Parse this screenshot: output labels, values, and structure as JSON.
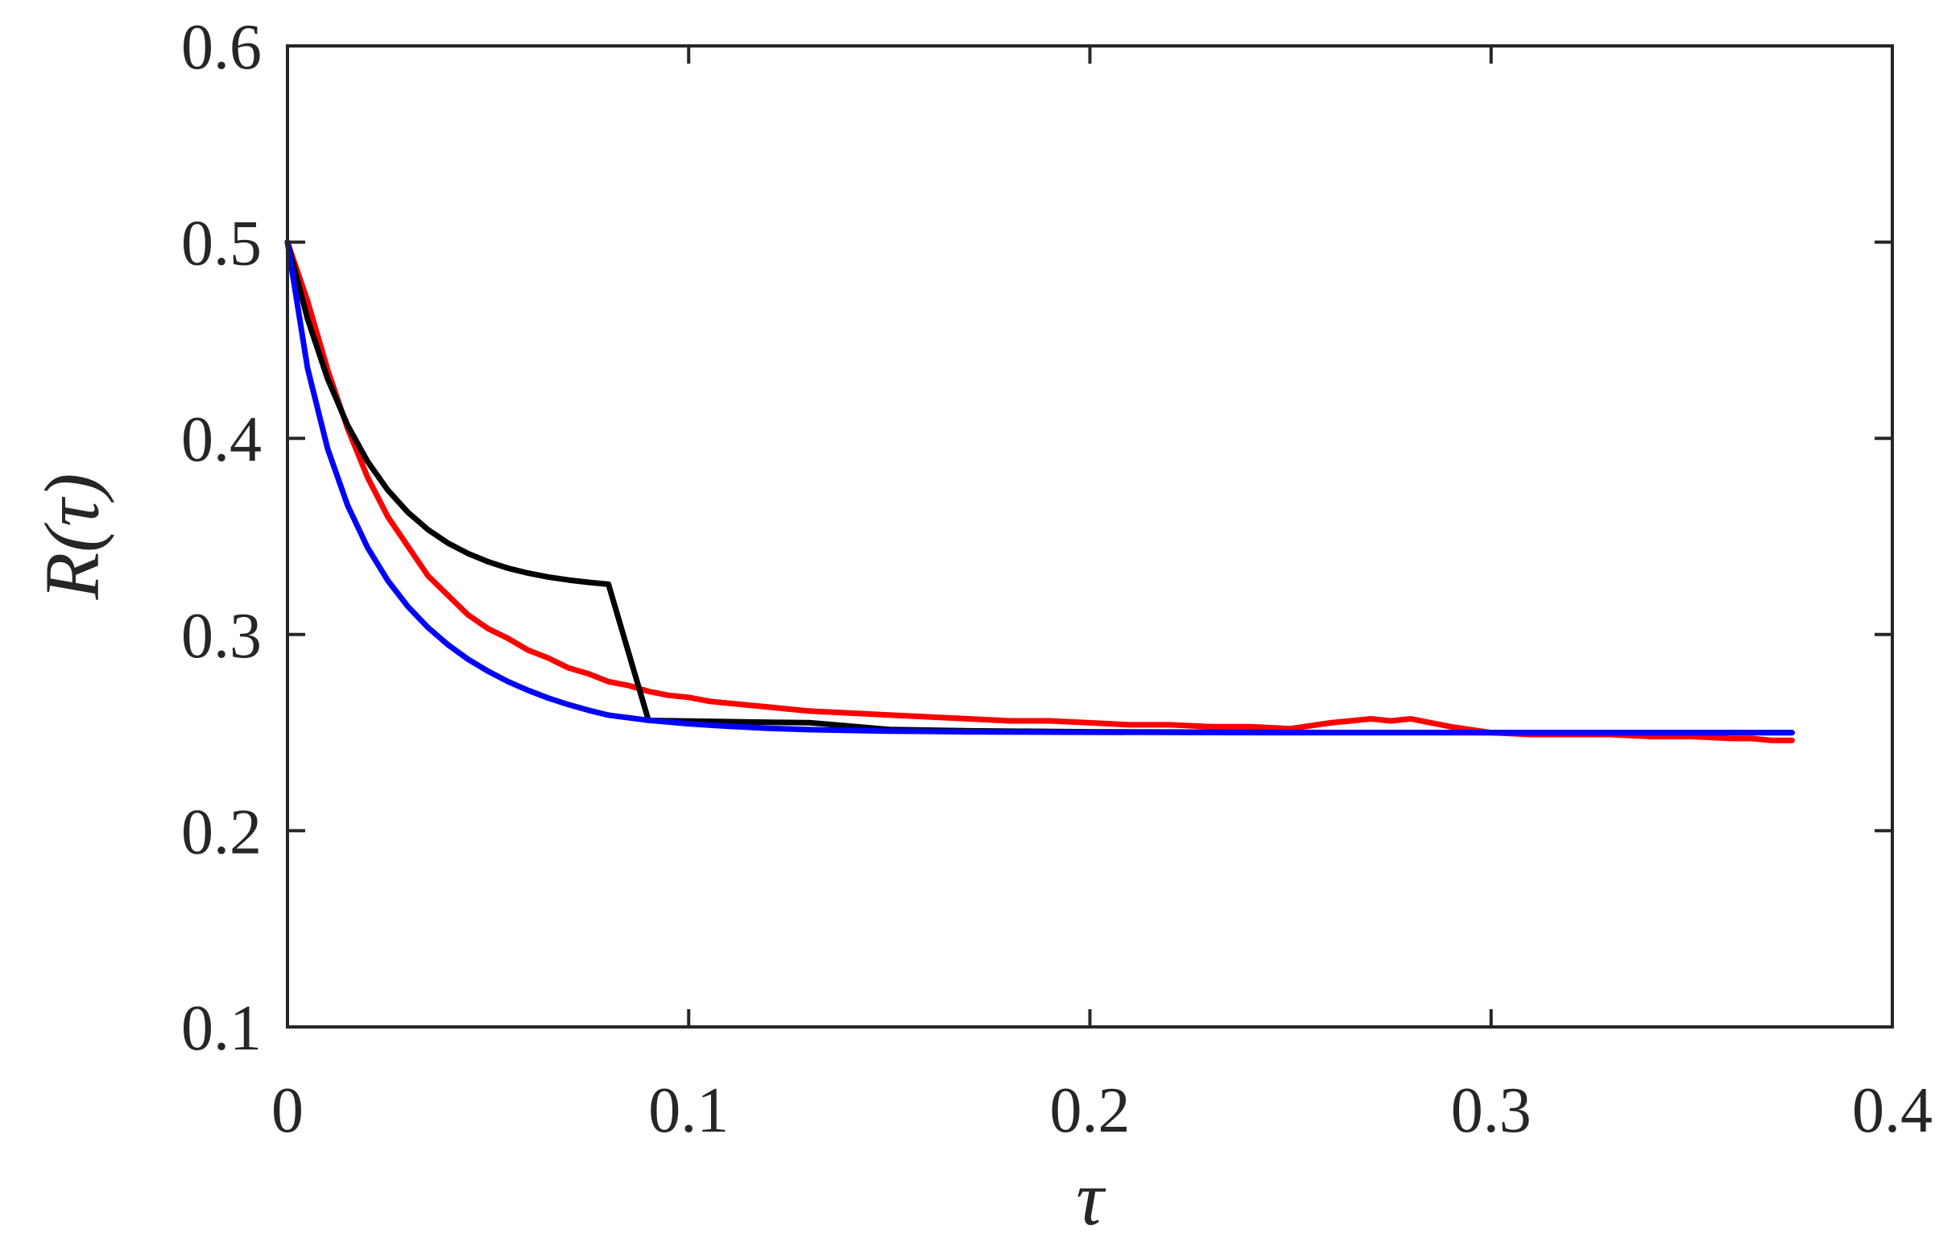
{
  "chart_data": {
    "type": "line",
    "title": "",
    "xlabel": "τ",
    "ylabel": "R(τ)",
    "xlim": [
      0,
      0.4
    ],
    "ylim": [
      0.1,
      0.6
    ],
    "xticks": [
      0,
      0.1,
      0.2,
      0.3,
      0.4
    ],
    "xtick_labels": [
      "0",
      "0.1",
      "0.2",
      "0.3",
      "0.4"
    ],
    "yticks": [
      0.1,
      0.2,
      0.3,
      0.4,
      0.5,
      0.6
    ],
    "ytick_labels": [
      "0.1",
      "0.2",
      "0.3",
      "0.4",
      "0.5",
      "0.6"
    ],
    "grid": false,
    "legend": "none",
    "series": [
      {
        "color": "#ff0000",
        "x": [
          0,
          0.005,
          0.01,
          0.015,
          0.02,
          0.025,
          0.03,
          0.035,
          0.04,
          0.045,
          0.05,
          0.055,
          0.06,
          0.065,
          0.07,
          0.075,
          0.08,
          0.085,
          0.09,
          0.095,
          0.1,
          0.105,
          0.11,
          0.115,
          0.12,
          0.125,
          0.13,
          0.14,
          0.15,
          0.16,
          0.17,
          0.18,
          0.19,
          0.2,
          0.21,
          0.22,
          0.23,
          0.24,
          0.25,
          0.26,
          0.265,
          0.27,
          0.275,
          0.28,
          0.29,
          0.3,
          0.31,
          0.32,
          0.33,
          0.34,
          0.35,
          0.36,
          0.365,
          0.37,
          0.375
        ],
        "y": [
          0.5,
          0.47,
          0.435,
          0.405,
          0.38,
          0.36,
          0.345,
          0.33,
          0.32,
          0.31,
          0.303,
          0.298,
          0.292,
          0.288,
          0.283,
          0.28,
          0.276,
          0.274,
          0.271,
          0.269,
          0.268,
          0.266,
          0.265,
          0.264,
          0.263,
          0.262,
          0.261,
          0.26,
          0.259,
          0.258,
          0.257,
          0.256,
          0.256,
          0.255,
          0.254,
          0.254,
          0.253,
          0.253,
          0.252,
          0.255,
          0.256,
          0.257,
          0.256,
          0.257,
          0.253,
          0.25,
          0.249,
          0.249,
          0.249,
          0.248,
          0.248,
          0.247,
          0.247,
          0.246,
          0.246
        ]
      },
      {
        "color": "#000000",
        "x": [
          0,
          0.005,
          0.01,
          0.015,
          0.02,
          0.025,
          0.03,
          0.035,
          0.04,
          0.045,
          0.05,
          0.055,
          0.06,
          0.065,
          0.07,
          0.075,
          0.08,
          0.09,
          0.1,
          0.11,
          0.12,
          0.13,
          0.15,
          0.17,
          0.2,
          0.25,
          0.3,
          0.35,
          0.375
        ],
        "y": [
          0.5,
          0.4609,
          0.4304,
          0.4066,
          0.3881,
          0.3736,
          0.3623,
          0.3535,
          0.3466,
          0.3413,
          0.3371,
          0.3338,
          0.3313,
          0.3293,
          0.3278,
          0.3266,
          0.3256,
          0.2562,
          0.2559,
          0.2556,
          0.2553,
          0.2551,
          0.2516,
          0.2509,
          0.2504,
          0.2501,
          0.25,
          0.25,
          0.25
        ]
      },
      {
        "color": "#0000ff",
        "x": [
          0,
          0.005,
          0.01,
          0.015,
          0.02,
          0.025,
          0.03,
          0.035,
          0.04,
          0.045,
          0.05,
          0.055,
          0.06,
          0.065,
          0.07,
          0.075,
          0.08,
          0.09,
          0.1,
          0.11,
          0.12,
          0.13,
          0.15,
          0.17,
          0.2,
          0.25,
          0.3,
          0.35,
          0.375
        ],
        "y": [
          0.5,
          0.4358,
          0.3948,
          0.3658,
          0.3442,
          0.3275,
          0.3143,
          0.3036,
          0.2948,
          0.2874,
          0.2813,
          0.276,
          0.2715,
          0.2676,
          0.2643,
          0.2614,
          0.2589,
          0.2563,
          0.2545,
          0.2532,
          0.2522,
          0.2515,
          0.2508,
          0.2504,
          0.2502,
          0.25,
          0.25,
          0.25,
          0.25
        ]
      }
    ]
  }
}
